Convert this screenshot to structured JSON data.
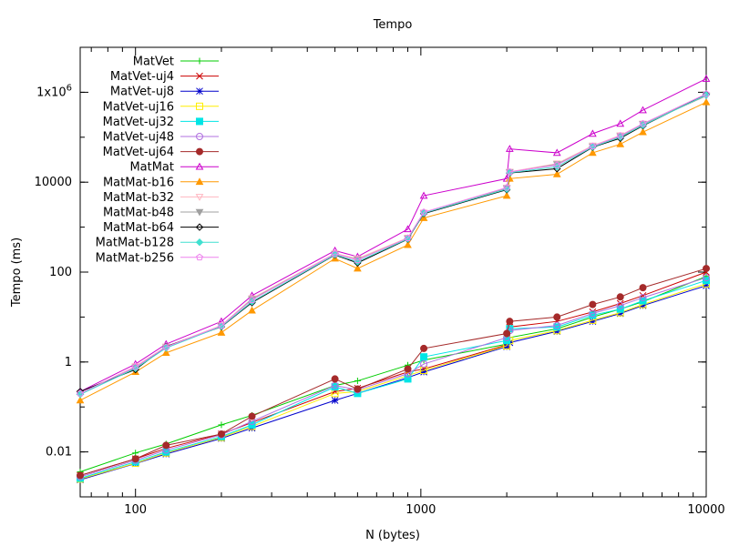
{
  "chart_data": {
    "type": "line",
    "title": "Tempo",
    "xlabel": "N (bytes)",
    "ylabel": "Tempo (ms)",
    "xscale": "log",
    "yscale": "log",
    "xlim": [
      64,
      10000
    ],
    "ylim": [
      0.001,
      10000000
    ],
    "x_ticks": [
      {
        "value": 100,
        "label": "100"
      },
      {
        "value": 1000,
        "label": "1000"
      },
      {
        "value": 10000,
        "label": "10000"
      }
    ],
    "y_ticks": [
      {
        "value": 0.01,
        "label": "0.01"
      },
      {
        "value": 1,
        "label": "1"
      },
      {
        "value": 100,
        "label": "100"
      },
      {
        "value": 10000,
        "label": "10000"
      },
      {
        "value": 1000000,
        "label": "1x10^6"
      }
    ],
    "grid": false,
    "legend_position": "top-left",
    "x": [
      64,
      100,
      128,
      200,
      256,
      500,
      600,
      900,
      1024,
      2000,
      2048,
      3000,
      4000,
      5000,
      6000,
      10000
    ],
    "series": [
      {
        "name": "MatVet",
        "color": "#00cc00",
        "marker": "plus",
        "values": [
          0.0036,
          0.0095,
          0.015,
          0.04,
          0.065,
          0.3,
          0.38,
          0.85,
          1.1,
          2.5,
          3.5,
          5.5,
          10,
          15,
          22,
          80
        ]
      },
      {
        "name": "MatVet-uj4",
        "color": "#cc0000",
        "marker": "x",
        "values": [
          0.003,
          0.007,
          0.012,
          0.025,
          0.045,
          0.22,
          0.26,
          0.6,
          0.7,
          2.4,
          6,
          8,
          13,
          20,
          30,
          100
        ]
      },
      {
        "name": "MatVet-uj8",
        "color": "#0000cc",
        "marker": "star",
        "values": [
          0.0024,
          0.0055,
          0.009,
          0.02,
          0.034,
          0.14,
          0.2,
          0.45,
          0.6,
          2.2,
          2.7,
          4.8,
          8,
          12,
          18,
          50
        ]
      },
      {
        "name": "MatVet-uj16",
        "color": "#ffee00",
        "marker": "square-open",
        "values": [
          0.0025,
          0.0056,
          0.0095,
          0.021,
          0.037,
          0.2,
          0.22,
          0.5,
          0.65,
          2.3,
          3,
          5,
          8.5,
          12.5,
          19,
          55
        ]
      },
      {
        "name": "MatVet-uj32",
        "color": "#00e5e5",
        "marker": "square-filled",
        "values": [
          0.0026,
          0.006,
          0.01,
          0.022,
          0.04,
          0.28,
          0.2,
          0.42,
          1.3,
          3,
          5.5,
          6,
          11,
          15,
          23,
          65
        ]
      },
      {
        "name": "MatVet-uj48",
        "color": "#b070e0",
        "marker": "circle-open",
        "values": [
          0.0028,
          0.0065,
          0.011,
          0.024,
          0.048,
          0.3,
          0.24,
          0.55,
          0.9,
          3.5,
          5,
          6.5,
          12,
          18,
          27,
          75
        ]
      },
      {
        "name": "MatVet-uj64",
        "color": "#a52a2a",
        "marker": "circle-filled",
        "values": [
          0.003,
          0.007,
          0.014,
          0.025,
          0.062,
          0.42,
          0.25,
          0.7,
          2,
          4.3,
          8,
          10,
          19,
          28,
          45,
          120
        ]
      },
      {
        "name": "MatMat",
        "color": "#cc00cc",
        "marker": "triangle-open",
        "values": [
          0.22,
          0.9,
          2.5,
          8,
          30,
          300,
          220,
          900,
          5000,
          12000,
          55000,
          45000,
          120000,
          200000,
          400000,
          2000000
        ]
      },
      {
        "name": "MatMat-b16",
        "color": "#ff9900",
        "marker": "triangle-filled",
        "values": [
          0.14,
          0.6,
          1.6,
          4.5,
          14,
          200,
          120,
          400,
          1600,
          5000,
          12000,
          15000,
          45000,
          70000,
          130000,
          600000
        ]
      },
      {
        "name": "MatMat-b32",
        "color": "#ffb6c1",
        "marker": "triangle-down-open",
        "values": [
          0.2,
          0.8,
          2.2,
          6.5,
          26,
          260,
          200,
          580,
          2100,
          7500,
          17000,
          26000,
          65000,
          110000,
          200000,
          850000
        ]
      },
      {
        "name": "MatMat-b48",
        "color": "#a0a0a0",
        "marker": "triangle-down-filled",
        "values": [
          0.19,
          0.75,
          2.1,
          6.3,
          25,
          250,
          190,
          560,
          2000,
          7300,
          16500,
          25000,
          62000,
          105000,
          195000,
          830000
        ]
      },
      {
        "name": "MatMat-b64",
        "color": "#000000",
        "marker": "diamond-open",
        "values": [
          0.22,
          0.68,
          2.2,
          6.1,
          21,
          240,
          160,
          540,
          2000,
          6800,
          16000,
          20000,
          60000,
          95000,
          180000,
          900000
        ]
      },
      {
        "name": "MatMat-b128",
        "color": "#40e0d0",
        "marker": "diamond-filled",
        "values": [
          0.19,
          0.72,
          2.05,
          6.2,
          22,
          245,
          170,
          550,
          2050,
          7000,
          16200,
          22000,
          61000,
          100000,
          185000,
          870000
        ]
      },
      {
        "name": "MatMat-b256",
        "color": "#ee82ee",
        "marker": "pentagon-open",
        "values": [
          0.2,
          0.78,
          2.15,
          6.4,
          24,
          255,
          185,
          570,
          2150,
          7600,
          17000,
          24000,
          63000,
          108000,
          200000,
          920000
        ]
      }
    ]
  }
}
